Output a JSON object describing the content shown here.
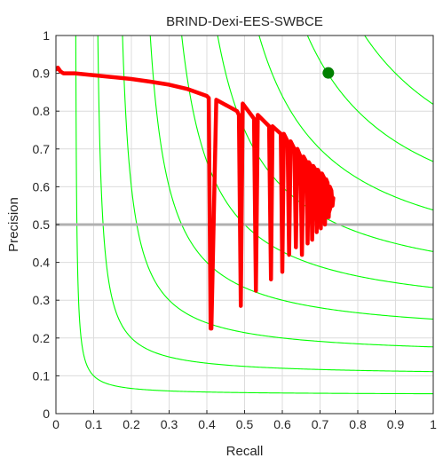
{
  "chart_data": {
    "type": "line",
    "title": "BRIND-Dexi-EES-SWBCE",
    "xlabel": "Recall",
    "ylabel": "Precision",
    "xlim": [
      0,
      1
    ],
    "ylim": [
      0,
      1
    ],
    "xticks": [
      "0",
      "0.1",
      "0.2",
      "0.3",
      "0.4",
      "0.5",
      "0.6",
      "0.7",
      "0.8",
      "0.9",
      "1"
    ],
    "yticks": [
      "0",
      "0.1",
      "0.2",
      "0.3",
      "0.4",
      "0.5",
      "0.6",
      "0.7",
      "0.8",
      "0.9",
      "1"
    ],
    "grid": true,
    "iso_f_levels": [
      0.1,
      0.2,
      0.3,
      0.4,
      0.5,
      0.6,
      0.7,
      0.8,
      0.9
    ],
    "reference_line": {
      "y": 0.5
    },
    "series": [
      {
        "x": [
          0.0,
          0.005,
          0.012,
          0.02,
          0.05,
          0.1,
          0.15,
          0.2,
          0.25,
          0.3,
          0.35,
          0.4,
          0.405,
          0.41,
          0.412,
          0.425,
          0.48,
          0.485,
          0.49,
          0.495,
          0.525,
          0.53,
          0.535,
          0.565,
          0.57,
          0.574,
          0.596,
          0.6,
          0.604,
          0.614,
          0.618,
          0.622,
          0.632,
          0.636,
          0.64,
          0.648,
          0.652,
          0.656,
          0.664,
          0.667,
          0.67,
          0.676,
          0.679,
          0.682,
          0.688,
          0.691,
          0.694,
          0.699,
          0.702,
          0.705,
          0.71,
          0.713,
          0.716,
          0.72,
          0.723,
          0.726,
          0.73,
          0.733,
          0.735,
          0.72
        ],
        "y": [
          0.91,
          0.915,
          0.905,
          0.9,
          0.9,
          0.895,
          0.89,
          0.885,
          0.878,
          0.87,
          0.858,
          0.84,
          0.835,
          0.225,
          0.225,
          0.83,
          0.8,
          0.79,
          0.285,
          0.82,
          0.78,
          0.325,
          0.79,
          0.76,
          0.355,
          0.76,
          0.74,
          0.375,
          0.74,
          0.72,
          0.42,
          0.72,
          0.7,
          0.44,
          0.7,
          0.68,
          0.42,
          0.68,
          0.665,
          0.45,
          0.665,
          0.655,
          0.46,
          0.655,
          0.645,
          0.48,
          0.645,
          0.635,
          0.49,
          0.635,
          0.625,
          0.5,
          0.62,
          0.61,
          0.52,
          0.6,
          0.59,
          0.55,
          0.57,
          0.52
        ],
        "color": "#ff0000"
      }
    ],
    "points": [
      {
        "x": 0.722,
        "y": 0.901,
        "color": "#008000"
      }
    ],
    "colors": {
      "curve": "#ff0000",
      "iso": "#00ff00",
      "ref": "#b0b0b0",
      "point": "#008000"
    }
  }
}
